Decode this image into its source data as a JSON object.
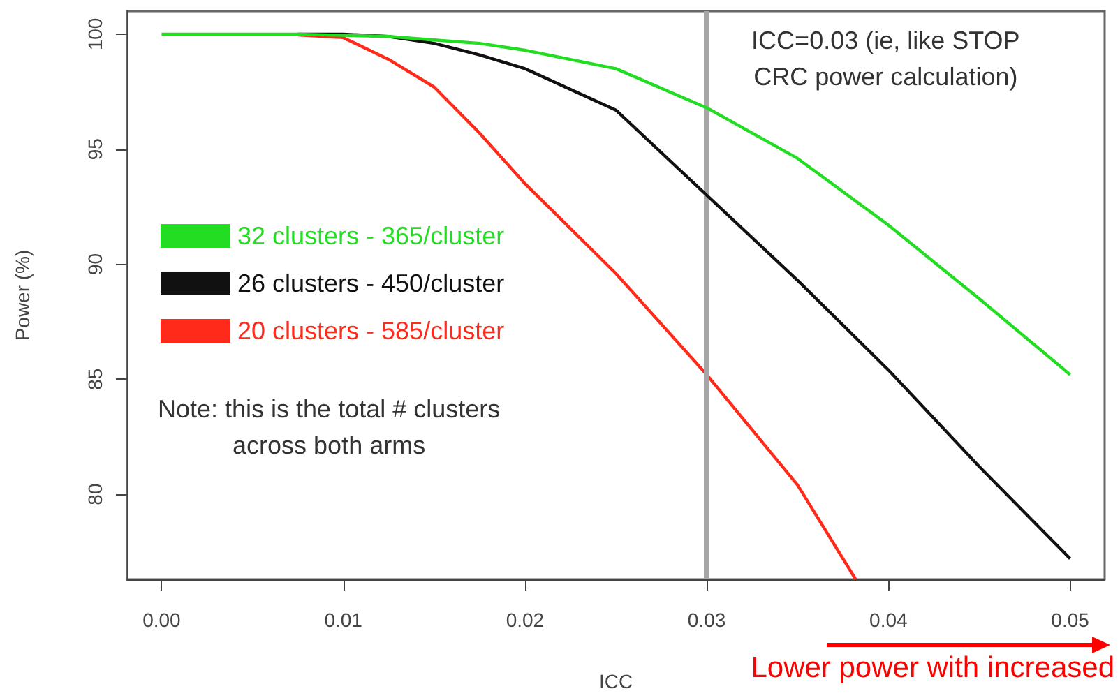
{
  "chart_data": {
    "type": "line",
    "xlabel": "ICC",
    "ylabel": "Power (%)",
    "x": [
      0,
      0.005,
      0.0075,
      0.01,
      0.0125,
      0.015,
      0.0175,
      0.02,
      0.025,
      0.03,
      0.035,
      0.04,
      0.045,
      0.05
    ],
    "series": [
      {
        "name": "32 clusters - 365/cluster",
        "color": "#22dd22",
        "values": [
          100,
          100,
          100,
          99.95,
          99.9,
          99.75,
          99.6,
          99.3,
          98.5,
          96.8,
          94.6,
          91.7,
          88.5,
          85.2
        ]
      },
      {
        "name": "26 clusters - 450/cluster",
        "color": "#111111",
        "values": [
          null,
          null,
          100,
          100,
          99.9,
          99.6,
          99.1,
          98.5,
          96.7,
          93.0,
          89.3,
          85.4,
          81.2,
          77.2
        ]
      },
      {
        "name": "20 clusters - 585/cluster",
        "color": "#ff2a1a",
        "x": [
          0.0075,
          0.01,
          0.0125,
          0.015,
          0.0175,
          0.02,
          0.025,
          0.03,
          0.035,
          0.0382
        ],
        "values": [
          99.97,
          99.85,
          98.9,
          97.7,
          95.7,
          93.5,
          89.6,
          85.2,
          80.4,
          76.3
        ]
      }
    ],
    "xlim": [
      -0.0019,
      0.0519
    ],
    "xticks": [
      {
        "value": 0,
        "label": "0.00"
      },
      0.01,
      0.02,
      0.03,
      0.04,
      0.05
    ],
    "ylim": [
      76.3,
      101
    ],
    "yticks": [
      80,
      85,
      90,
      95,
      100
    ],
    "ref_lines": [
      {
        "axis": "x",
        "value": 0.03,
        "label": "ICC=0.03 (ie, like STOP\nCRC power calculation)",
        "color": "#a6a6a6"
      }
    ],
    "annotations": [
      "Note: this is the total # clusters\nacross both arms",
      "Lower power with increased"
    ],
    "legend": "left",
    "grid": false,
    "marker": "none",
    "line_style": "solid"
  }
}
